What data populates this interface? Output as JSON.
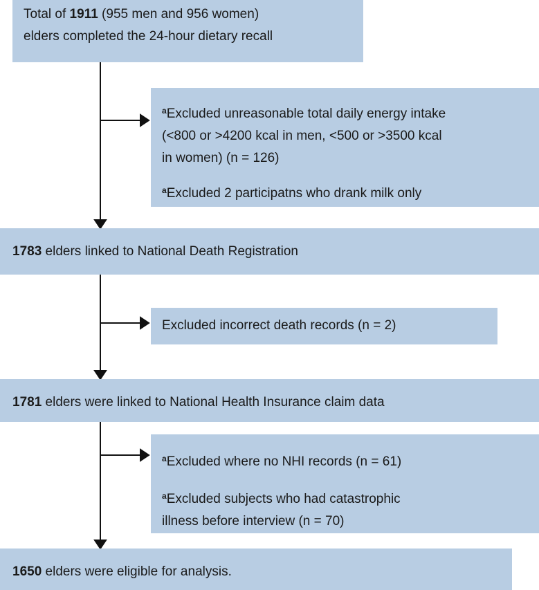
{
  "boxes": [
    {
      "lines": [
        [
          {
            "t": "Total of "
          },
          {
            "t": "1911",
            "b": true
          },
          {
            "t": " (955 men and 956 women)"
          }
        ],
        [
          {
            "t": "elders completed the 24-hour dietary recall"
          }
        ]
      ]
    },
    {
      "lines": [
        [
          {
            "t": "1783",
            "b": true
          },
          {
            "t": " elders linked to National Death Registration"
          }
        ]
      ]
    },
    {
      "lines": [
        [
          {
            "t": "1781",
            "b": true
          },
          {
            "t": " elders were linked to National Health Insurance claim data"
          }
        ]
      ]
    },
    {
      "lines": [
        [
          {
            "t": "1650",
            "b": true
          },
          {
            "t": " elders were eligible for analysis."
          }
        ]
      ]
    }
  ],
  "exclusions": [
    {
      "items": [
        {
          "marker": "a",
          "lines": [
            "Excluded unreasonable total daily energy intake",
            "(<800 or >4200 kcal in men, <500 or >3500 kcal",
            "in women) (n = 126)"
          ]
        },
        {
          "marker": "a",
          "lines": [
            "Excluded 2 participatns who drank milk only"
          ]
        }
      ]
    },
    {
      "items": [
        {
          "lines": [
            "Excluded incorrect death records (n = 2)"
          ]
        }
      ]
    },
    {
      "items": [
        {
          "marker": "a",
          "lines": [
            "Excluded where no NHI records (n = 61)"
          ]
        },
        {
          "marker": "a",
          "lines": [
            "Excluded subjects who had catastrophic",
            "illness before interview (n = 70)"
          ]
        }
      ]
    }
  ]
}
